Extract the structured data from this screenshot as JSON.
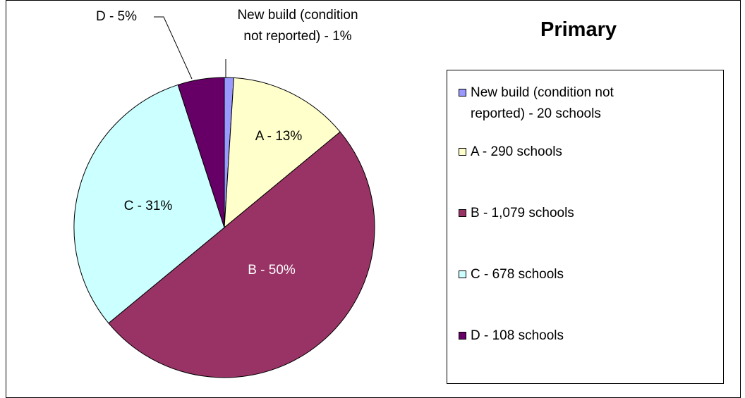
{
  "chart_data": {
    "type": "pie",
    "title": "Primary",
    "categories": [
      "New build (condition not reported) - 20 schools",
      "A - 290 schools",
      "B - 1,079 schools",
      "C - 678 schools",
      "D - 108 schools"
    ],
    "values": [
      1,
      13,
      50,
      31,
      5
    ],
    "value_labels": [
      "New build (condition not reported) - 1%",
      "A - 13%",
      "B - 50%",
      "C - 31%",
      "D - 5%"
    ],
    "colors": [
      "#9999ff",
      "#ffffcc",
      "#993366",
      "#ccffff",
      "#660066"
    ],
    "legend": "right"
  }
}
